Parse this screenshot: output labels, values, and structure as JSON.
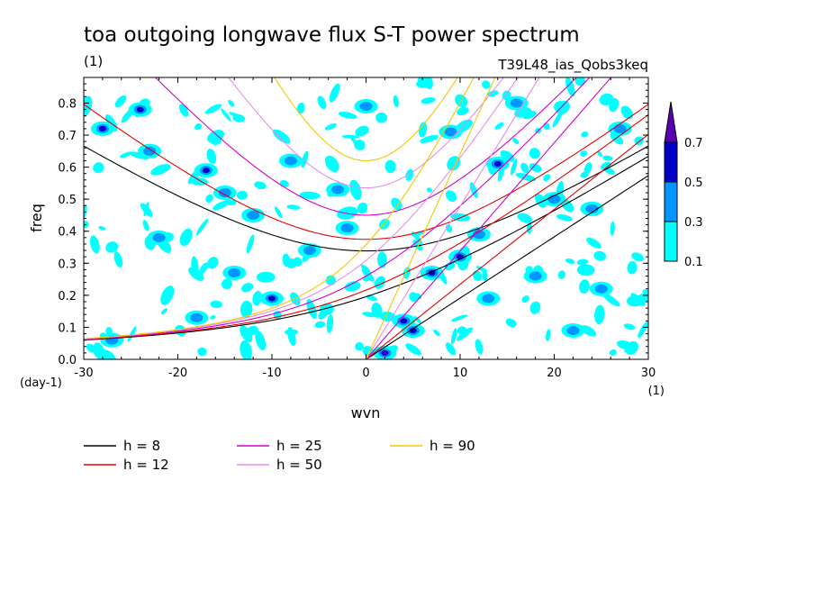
{
  "chart_data": {
    "type": "heatmap",
    "title": "toa outgoing longwave flux S-T power spectrum",
    "subtitle_left": "(1)",
    "subtitle_right": "T39L48_ias_Qobs3keq",
    "xlabel": "wvn",
    "ylabel": "freq",
    "x_unit": "(1)",
    "y_unit": "(day-1)",
    "xlim": [
      -30,
      30
    ],
    "ylim": [
      0,
      0.88
    ],
    "x_ticks": [
      -30,
      -20,
      -10,
      0,
      10,
      20,
      30
    ],
    "x_tick_labels": [
      "-30",
      "-20",
      "-10",
      "0",
      "10",
      "20",
      "30"
    ],
    "y_ticks": [
      0,
      0.1,
      0.2,
      0.3,
      0.4,
      0.5,
      0.6,
      0.7,
      0.8
    ],
    "y_tick_labels": [
      "0.0",
      "0.1",
      "0.2",
      "0.3",
      "0.4",
      "0.5",
      "0.6",
      "0.7",
      "0.8"
    ],
    "colorbar": {
      "levels": [
        0.1,
        0.3,
        0.5,
        0.7
      ],
      "level_labels": [
        "0.1",
        "0.3",
        "0.5",
        "0.7"
      ],
      "colors": [
        "#00ffff",
        "#0096ff",
        "#0000c8",
        "#5a00b4"
      ]
    },
    "blobs": [
      [
        -28,
        0.72,
        0.5
      ],
      [
        -24,
        0.78,
        0.6
      ],
      [
        -23,
        0.65,
        0.45
      ],
      [
        -17,
        0.59,
        0.5
      ],
      [
        -15,
        0.52,
        0.4
      ],
      [
        -12,
        0.45,
        0.35
      ],
      [
        -10,
        0.19,
        0.55
      ],
      [
        -6,
        0.34,
        0.4
      ],
      [
        -3,
        0.53,
        0.35
      ],
      [
        2,
        0.02,
        0.75
      ],
      [
        4,
        0.12,
        0.55
      ],
      [
        5,
        0.09,
        0.6
      ],
      [
        7,
        0.27,
        0.5
      ],
      [
        10,
        0.32,
        0.65
      ],
      [
        12,
        0.39,
        0.4
      ],
      [
        14,
        0.61,
        0.5
      ],
      [
        18,
        0.26,
        0.45
      ],
      [
        20,
        0.5,
        0.4
      ],
      [
        25,
        0.22,
        0.35
      ],
      [
        27,
        0.72,
        0.4
      ],
      [
        -22,
        0.38,
        0.3
      ],
      [
        -8,
        0.62,
        0.3
      ],
      [
        0,
        0.79,
        0.3
      ],
      [
        16,
        0.8,
        0.3
      ],
      [
        -27,
        0.06,
        0.35
      ],
      [
        22,
        0.09,
        0.3
      ],
      [
        -14,
        0.27,
        0.3
      ],
      [
        9,
        0.71,
        0.35
      ],
      [
        -2,
        0.41,
        0.3
      ],
      [
        24,
        0.47,
        0.3
      ],
      [
        -18,
        0.13,
        0.3
      ],
      [
        13,
        0.19,
        0.35
      ]
    ],
    "series": [
      {
        "name": "h =  8",
        "h": 8,
        "color": "#000000"
      },
      {
        "name": "h = 12",
        "h": 12,
        "color": "#e00000"
      },
      {
        "name": "h = 25",
        "h": 25,
        "color": "#d000d0"
      },
      {
        "name": "h = 50",
        "h": 50,
        "color": "#e48ee4"
      },
      {
        "name": "h = 90",
        "h": 90,
        "color": "#f0c800"
      }
    ]
  }
}
